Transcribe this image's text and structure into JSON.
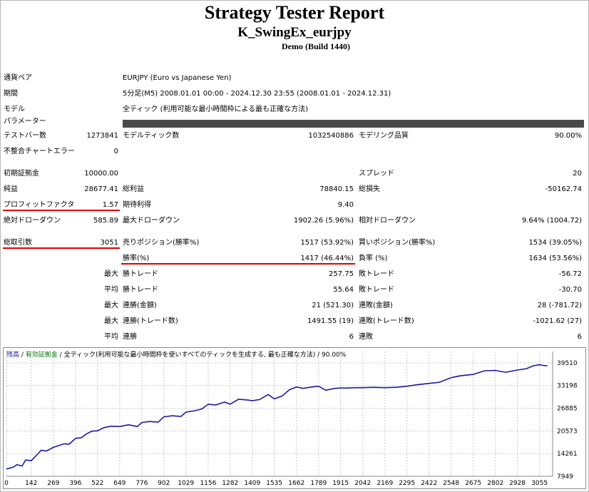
{
  "report": {
    "title": "Strategy Tester Report",
    "ea_name": "K_SwingEx_eurjpy",
    "build": "Demo (Build 1440)"
  },
  "info": {
    "symbol_label": "通貨ペア",
    "symbol": "EURJPY (Euro vs Japanese Yen)",
    "period_label": "期間",
    "period": "5分足(M5) 2008.01.01 00:00 - 2024.12.30 23:55 (2008.01.01 - 2024.12.31)",
    "model_label": "モデル",
    "model": "全ティック (利用可能な最小時間枠による最も正確な方法)",
    "params_label": "パラメーター"
  },
  "stats": {
    "bars_label": "テストバー数",
    "bars": "1273841",
    "ticks_label": "モデルティック数",
    "ticks": "1032540886",
    "quality_label": "モデリング品質",
    "quality": "90.00%",
    "mismatch_label": "不整合チャートエラー",
    "mismatch": "0",
    "deposit_label": "初期証拠金",
    "deposit": "10000.00",
    "spread_label": "スプレッド",
    "spread": "20",
    "net_label": "純益",
    "net": "28677.41",
    "gross_profit_label": "総利益",
    "gross_profit": "78840.15",
    "gross_loss_label": "総損失",
    "gross_loss": "-50162.74",
    "pf_label": "プロフィットファクタ",
    "pf": "1.57",
    "expected_label": "期待利得",
    "expected": "9.40",
    "abs_dd_label": "絶対ドローダウン",
    "abs_dd": "585.89",
    "max_dd_label": "最大ドローダウン",
    "max_dd": "1902.26 (5.96%)",
    "rel_dd_label": "相対ドローダウン",
    "rel_dd": "9.64% (1004.72)",
    "trades_label": "総取引数",
    "trades": "3051",
    "short_label": "売りポジション(勝率%)",
    "short": "1517 (53.92%)",
    "long_label": "買いポジション(勝率%)",
    "long": "1534 (39.05%)",
    "win_label": "勝率(%)",
    "win": "1417 (46.44%)",
    "loss_label": "負率 (%)",
    "loss": "1634 (53.56%)",
    "max1": "最大",
    "best_label": "勝トレード",
    "best": "257.75",
    "worst_label": "敗トレード",
    "worst": "-56.72",
    "avg1": "平均",
    "avg_win_label": "勝トレード",
    "avg_win": "55.64",
    "avg_loss_label": "敗トレード",
    "avg_loss": "-30.70",
    "max2": "最大",
    "cons_win_label": "連勝(金額)",
    "cons_win": "21 (521.30)",
    "cons_loss_label": "連敗(金額)",
    "cons_loss": "28 (-781.72)",
    "max3": "最大",
    "cons_profit_label": "連勝(トレード数)",
    "cons_profit": "1491.55 (19)",
    "cons_lossamt_label": "連敗(トレード数)",
    "cons_lossamt": "-1021.62 (27)",
    "avg2": "平均",
    "avg_cons_win_label": "連勝",
    "avg_cons_win": "6",
    "avg_cons_loss_label": "連敗",
    "avg_cons_loss": "6"
  },
  "legend": {
    "balance": "残高",
    "sep1": " / ",
    "equity": "有効証拠金",
    "sep2": " / ",
    "model": "全ティック(利用可能な最小時間枠を使いすべてのティックを生成する, 最も正確な方法)",
    "quality": " / 90.00%"
  },
  "colors": {
    "balance": "#1a1aa0",
    "grid": "#c8c8c8",
    "underline": "#e00000"
  },
  "chart_data": {
    "type": "line",
    "x_ticks": [
      0,
      142,
      269,
      396,
      522,
      649,
      776,
      902,
      1029,
      1156,
      1282,
      1409,
      1535,
      1662,
      1789,
      1915,
      2042,
      2169,
      2295,
      2422,
      2548,
      2675,
      2802,
      2928,
      3055
    ],
    "y_ticks": [
      7949,
      14261,
      20573,
      26885,
      33198,
      39510
    ],
    "xlim": [
      0,
      3130
    ],
    "ylim": [
      7949,
      42666
    ],
    "series": [
      {
        "values_x": [
          0,
          40,
          60,
          90,
          110,
          142,
          180,
          200,
          230,
          269,
          300,
          330,
          360,
          396,
          430,
          460,
          490,
          522,
          560,
          600,
          649,
          700,
          750,
          776,
          820,
          870,
          902,
          950,
          1000,
          1029,
          1080,
          1120,
          1156,
          1200,
          1250,
          1282,
          1330,
          1380,
          1409,
          1450,
          1500,
          1535,
          1580,
          1620,
          1662,
          1700,
          1750,
          1789,
          1830,
          1880,
          1915,
          1960,
          2000,
          2042,
          2100,
          2169,
          2230,
          2295,
          2350,
          2422,
          2480,
          2548,
          2600,
          2675,
          2740,
          2802,
          2860,
          2928,
          2980,
          3020,
          3055,
          3075,
          3100
        ],
        "values_y": [
          10000,
          10500,
          11200,
          10800,
          12500,
          12300,
          14200,
          15200,
          15000,
          16000,
          16500,
          17000,
          16900,
          18500,
          18700,
          19800,
          20500,
          20600,
          21500,
          21900,
          21800,
          22300,
          21800,
          22900,
          23200,
          23000,
          24500,
          24800,
          24600,
          25800,
          26200,
          26700,
          28000,
          27800,
          28600,
          28000,
          29400,
          29200,
          29000,
          29300,
          30700,
          29500,
          30300,
          32000,
          32800,
          32400,
          32800,
          33000,
          31900,
          32400,
          32500,
          32500,
          32600,
          32600,
          32700,
          32600,
          32700,
          33000,
          33400,
          33800,
          34100,
          35400,
          35900,
          36300,
          37300,
          37400,
          36900,
          37500,
          37900,
          38700,
          39000,
          38800,
          38700
        ]
      }
    ]
  }
}
